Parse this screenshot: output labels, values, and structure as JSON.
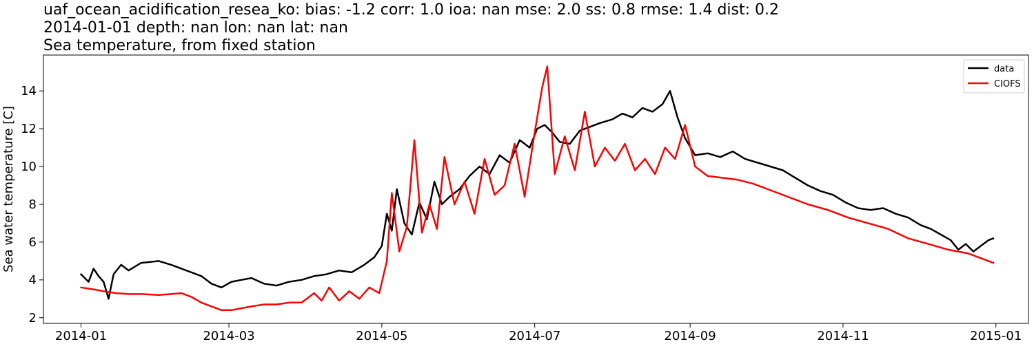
{
  "chart_data": {
    "type": "line",
    "title_lines": [
      "uaf_ocean_acidification_resea_ko: bias: -1.2  corr: 1.0  ioa: nan  mse: 2.0  ss: 0.8  rmse: 1.4  dist: 0.2",
      "2014-01-01 depth: nan lon: nan lat: nan",
      "Sea temperature, from fixed station"
    ],
    "xlabel": "",
    "ylabel": "Sea water temperature [C]",
    "x_ticks": [
      "2014-01",
      "2014-03",
      "2014-05",
      "2014-07",
      "2014-09",
      "2014-11",
      "2015-01"
    ],
    "y_ticks": [
      2,
      4,
      6,
      8,
      10,
      12,
      14
    ],
    "xlim": [
      "2013-12-17",
      "2015-01-14"
    ],
    "ylim": [
      1.7,
      15.9
    ],
    "grid": false,
    "legend_position": "top-right",
    "series": [
      {
        "name": "data",
        "color": "#000000",
        "x": [
          "2014-01-01",
          "2014-01-04",
          "2014-01-06",
          "2014-01-08",
          "2014-01-10",
          "2014-01-12",
          "2014-01-14",
          "2014-01-17",
          "2014-01-20",
          "2014-01-25",
          "2014-02-01",
          "2014-02-06",
          "2014-02-10",
          "2014-02-14",
          "2014-02-18",
          "2014-02-22",
          "2014-02-26",
          "2014-03-02",
          "2014-03-06",
          "2014-03-10",
          "2014-03-15",
          "2014-03-20",
          "2014-03-25",
          "2014-03-30",
          "2014-04-04",
          "2014-04-09",
          "2014-04-14",
          "2014-04-19",
          "2014-04-24",
          "2014-04-28",
          "2014-05-01",
          "2014-05-03",
          "2014-05-05",
          "2014-05-07",
          "2014-05-10",
          "2014-05-13",
          "2014-05-16",
          "2014-05-19",
          "2014-05-22",
          "2014-05-25",
          "2014-05-28",
          "2014-06-01",
          "2014-06-05",
          "2014-06-09",
          "2014-06-13",
          "2014-06-17",
          "2014-06-21",
          "2014-06-25",
          "2014-06-29",
          "2014-07-02",
          "2014-07-05",
          "2014-07-08",
          "2014-07-11",
          "2014-07-15",
          "2014-07-19",
          "2014-07-23",
          "2014-07-27",
          "2014-08-01",
          "2014-08-05",
          "2014-08-09",
          "2014-08-13",
          "2014-08-17",
          "2014-08-21",
          "2014-08-24",
          "2014-08-27",
          "2014-08-30",
          "2014-09-03",
          "2014-09-08",
          "2014-09-13",
          "2014-09-18",
          "2014-09-23",
          "2014-09-28",
          "2014-10-03",
          "2014-10-08",
          "2014-10-13",
          "2014-10-18",
          "2014-10-23",
          "2014-10-28",
          "2014-11-02",
          "2014-11-07",
          "2014-11-12",
          "2014-11-17",
          "2014-11-22",
          "2014-11-27",
          "2014-12-02",
          "2014-12-06",
          "2014-12-10",
          "2014-12-14",
          "2014-12-17",
          "2014-12-20",
          "2014-12-23",
          "2014-12-26",
          "2014-12-29",
          "2014-12-31"
        ],
        "y": [
          4.3,
          3.9,
          4.6,
          4.2,
          3.9,
          3.0,
          4.3,
          4.8,
          4.5,
          4.9,
          5.0,
          4.8,
          4.6,
          4.4,
          4.2,
          3.8,
          3.6,
          3.9,
          4.0,
          4.1,
          3.8,
          3.7,
          3.9,
          4.0,
          4.2,
          4.3,
          4.5,
          4.4,
          4.8,
          5.2,
          5.8,
          7.5,
          6.6,
          8.8,
          7.0,
          6.4,
          8.1,
          7.2,
          9.2,
          8.0,
          8.4,
          8.8,
          9.5,
          10.0,
          9.6,
          10.6,
          10.2,
          11.4,
          11.0,
          12.0,
          12.2,
          11.8,
          11.3,
          11.2,
          11.9,
          12.1,
          12.3,
          12.5,
          12.8,
          12.6,
          13.1,
          12.9,
          13.3,
          14.0,
          12.6,
          11.5,
          10.6,
          10.7,
          10.5,
          10.8,
          10.4,
          10.2,
          10.0,
          9.8,
          9.4,
          9.0,
          8.7,
          8.5,
          8.1,
          7.8,
          7.7,
          7.8,
          7.5,
          7.3,
          6.9,
          6.7,
          6.4,
          6.1,
          5.6,
          5.9,
          5.5,
          5.8,
          6.1,
          6.2
        ]
      },
      {
        "name": "CIOFS",
        "color": "#ff0000",
        "x": [
          "2014-01-01",
          "2014-01-06",
          "2014-01-10",
          "2014-01-15",
          "2014-01-20",
          "2014-01-25",
          "2014-02-01",
          "2014-02-06",
          "2014-02-10",
          "2014-02-14",
          "2014-02-18",
          "2014-02-22",
          "2014-02-26",
          "2014-03-02",
          "2014-03-06",
          "2014-03-10",
          "2014-03-15",
          "2014-03-20",
          "2014-03-25",
          "2014-03-30",
          "2014-04-04",
          "2014-04-07",
          "2014-04-10",
          "2014-04-14",
          "2014-04-18",
          "2014-04-22",
          "2014-04-26",
          "2014-04-30",
          "2014-05-03",
          "2014-05-05",
          "2014-05-08",
          "2014-05-11",
          "2014-05-14",
          "2014-05-17",
          "2014-05-20",
          "2014-05-23",
          "2014-05-26",
          "2014-05-30",
          "2014-06-03",
          "2014-06-07",
          "2014-06-11",
          "2014-06-15",
          "2014-06-19",
          "2014-06-23",
          "2014-06-27",
          "2014-07-01",
          "2014-07-04",
          "2014-07-06",
          "2014-07-09",
          "2014-07-13",
          "2014-07-17",
          "2014-07-21",
          "2014-07-25",
          "2014-07-29",
          "2014-08-02",
          "2014-08-06",
          "2014-08-10",
          "2014-08-14",
          "2014-08-18",
          "2014-08-22",
          "2014-08-26",
          "2014-08-30",
          "2014-09-03",
          "2014-09-08",
          "2014-09-14",
          "2014-09-20",
          "2014-09-26",
          "2014-10-02",
          "2014-10-10",
          "2014-10-18",
          "2014-10-26",
          "2014-11-03",
          "2014-11-11",
          "2014-11-19",
          "2014-11-27",
          "2014-12-05",
          "2014-12-13",
          "2014-12-21",
          "2014-12-31"
        ],
        "y": [
          3.6,
          3.5,
          3.4,
          3.3,
          3.25,
          3.25,
          3.2,
          3.25,
          3.3,
          3.1,
          2.8,
          2.6,
          2.4,
          2.4,
          2.5,
          2.6,
          2.7,
          2.7,
          2.8,
          2.8,
          3.3,
          2.9,
          3.6,
          2.9,
          3.4,
          3.0,
          3.6,
          3.3,
          5.0,
          8.6,
          5.5,
          6.8,
          11.4,
          6.5,
          8.0,
          6.7,
          10.5,
          8.0,
          9.2,
          7.5,
          10.4,
          8.5,
          9.0,
          11.2,
          8.4,
          11.8,
          14.2,
          15.3,
          9.6,
          11.6,
          9.8,
          12.9,
          10.0,
          11.0,
          10.3,
          11.2,
          9.8,
          10.4,
          9.6,
          11.0,
          10.4,
          12.2,
          10.0,
          9.5,
          9.4,
          9.3,
          9.1,
          8.8,
          8.4,
          8.0,
          7.7,
          7.3,
          7.0,
          6.7,
          6.2,
          5.9,
          5.6,
          5.4,
          4.9
        ]
      }
    ]
  }
}
